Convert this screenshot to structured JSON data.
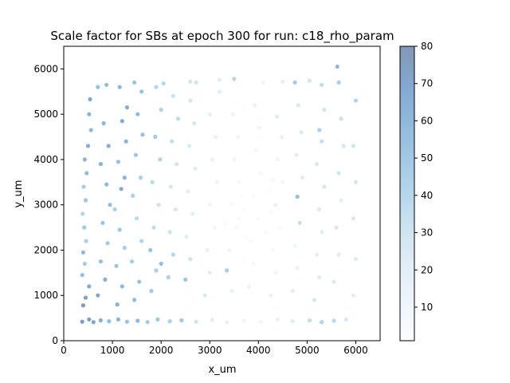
{
  "chart_data": {
    "type": "scatter",
    "title": "Scale factor for SBs at epoch 300 for run: c18_rho_param",
    "xlabel": "x_um",
    "ylabel": "y_um",
    "xlim": [
      0,
      6500
    ],
    "ylim": [
      0,
      6500
    ],
    "xticks": [
      "0",
      "1000",
      "2000",
      "3000",
      "4000",
      "5000",
      "6000"
    ],
    "yticks": [
      "0",
      "1000",
      "2000",
      "3000",
      "4000",
      "5000",
      "6000"
    ],
    "colorbar": {
      "colormap": "Blues",
      "range": [
        1,
        80
      ],
      "ticks": [
        "10",
        "20",
        "30",
        "40",
        "50",
        "60",
        "70",
        "80"
      ]
    },
    "colors": {
      "low": "#f7fbff",
      "mid": "#6baed6",
      "high": "#08306b"
    },
    "grid": false,
    "marker_alpha": 0.5,
    "points": [
      {
        "x": 380,
        "y": 420,
        "c": 78
      },
      {
        "x": 520,
        "y": 470,
        "c": 75
      },
      {
        "x": 610,
        "y": 410,
        "c": 72
      },
      {
        "x": 760,
        "y": 450,
        "c": 66
      },
      {
        "x": 930,
        "y": 430,
        "c": 58
      },
      {
        "x": 1120,
        "y": 470,
        "c": 62
      },
      {
        "x": 1300,
        "y": 420,
        "c": 55
      },
      {
        "x": 1520,
        "y": 440,
        "c": 60
      },
      {
        "x": 1720,
        "y": 410,
        "c": 48
      },
      {
        "x": 1930,
        "y": 470,
        "c": 52
      },
      {
        "x": 2180,
        "y": 430,
        "c": 44
      },
      {
        "x": 2420,
        "y": 450,
        "c": 50
      },
      {
        "x": 2720,
        "y": 420,
        "c": 30
      },
      {
        "x": 3050,
        "y": 460,
        "c": 20
      },
      {
        "x": 3350,
        "y": 410,
        "c": 14
      },
      {
        "x": 3700,
        "y": 440,
        "c": 12
      },
      {
        "x": 4050,
        "y": 420,
        "c": 10
      },
      {
        "x": 4400,
        "y": 470,
        "c": 15
      },
      {
        "x": 4700,
        "y": 430,
        "c": 22
      },
      {
        "x": 5050,
        "y": 450,
        "c": 34
      },
      {
        "x": 5300,
        "y": 410,
        "c": 42
      },
      {
        "x": 5550,
        "y": 440,
        "c": 38
      },
      {
        "x": 5800,
        "y": 470,
        "c": 28
      },
      {
        "x": 400,
        "y": 780,
        "c": 80
      },
      {
        "x": 450,
        "y": 950,
        "c": 74
      },
      {
        "x": 520,
        "y": 1200,
        "c": 68
      },
      {
        "x": 380,
        "y": 1450,
        "c": 56
      },
      {
        "x": 430,
        "y": 1700,
        "c": 48
      },
      {
        "x": 400,
        "y": 1950,
        "c": 60
      },
      {
        "x": 460,
        "y": 2200,
        "c": 44
      },
      {
        "x": 420,
        "y": 2500,
        "c": 50
      },
      {
        "x": 390,
        "y": 2800,
        "c": 40
      },
      {
        "x": 450,
        "y": 3100,
        "c": 52
      },
      {
        "x": 410,
        "y": 3400,
        "c": 46
      },
      {
        "x": 470,
        "y": 3700,
        "c": 58
      },
      {
        "x": 430,
        "y": 4000,
        "c": 62
      },
      {
        "x": 500,
        "y": 4300,
        "c": 66
      },
      {
        "x": 560,
        "y": 4650,
        "c": 60
      },
      {
        "x": 520,
        "y": 5000,
        "c": 64
      },
      {
        "x": 540,
        "y": 5330,
        "c": 70
      },
      {
        "x": 700,
        "y": 1000,
        "c": 72
      },
      {
        "x": 850,
        "y": 1350,
        "c": 65
      },
      {
        "x": 760,
        "y": 1750,
        "c": 55
      },
      {
        "x": 900,
        "y": 2150,
        "c": 48
      },
      {
        "x": 800,
        "y": 2600,
        "c": 52
      },
      {
        "x": 950,
        "y": 3000,
        "c": 57
      },
      {
        "x": 880,
        "y": 3450,
        "c": 60
      },
      {
        "x": 760,
        "y": 3900,
        "c": 63
      },
      {
        "x": 920,
        "y": 4300,
        "c": 66
      },
      {
        "x": 820,
        "y": 4800,
        "c": 62
      },
      {
        "x": 880,
        "y": 5650,
        "c": 58
      },
      {
        "x": 1100,
        "y": 800,
        "c": 64
      },
      {
        "x": 1200,
        "y": 1200,
        "c": 60
      },
      {
        "x": 1080,
        "y": 1650,
        "c": 52
      },
      {
        "x": 1250,
        "y": 2050,
        "c": 46
      },
      {
        "x": 1150,
        "y": 2450,
        "c": 50
      },
      {
        "x": 1050,
        "y": 2900,
        "c": 44
      },
      {
        "x": 1180,
        "y": 3350,
        "c": 68
      },
      {
        "x": 1250,
        "y": 3600,
        "c": 62
      },
      {
        "x": 1120,
        "y": 3950,
        "c": 56
      },
      {
        "x": 1280,
        "y": 4400,
        "c": 64
      },
      {
        "x": 1200,
        "y": 4850,
        "c": 70
      },
      {
        "x": 1300,
        "y": 5150,
        "c": 66
      },
      {
        "x": 1150,
        "y": 5600,
        "c": 60
      },
      {
        "x": 1450,
        "y": 900,
        "c": 58
      },
      {
        "x": 1550,
        "y": 1300,
        "c": 54
      },
      {
        "x": 1400,
        "y": 1750,
        "c": 48
      },
      {
        "x": 1600,
        "y": 2200,
        "c": 42
      },
      {
        "x": 1500,
        "y": 2700,
        "c": 38
      },
      {
        "x": 1420,
        "y": 3200,
        "c": 44
      },
      {
        "x": 1580,
        "y": 3600,
        "c": 46
      },
      {
        "x": 1480,
        "y": 4100,
        "c": 52
      },
      {
        "x": 1620,
        "y": 4550,
        "c": 56
      },
      {
        "x": 1520,
        "y": 5000,
        "c": 60
      },
      {
        "x": 1600,
        "y": 5500,
        "c": 54
      },
      {
        "x": 1800,
        "y": 1100,
        "c": 50
      },
      {
        "x": 1900,
        "y": 1550,
        "c": 46
      },
      {
        "x": 1780,
        "y": 2000,
        "c": 52
      },
      {
        "x": 2000,
        "y": 1700,
        "c": 58
      },
      {
        "x": 1850,
        "y": 2500,
        "c": 36
      },
      {
        "x": 1950,
        "y": 3000,
        "c": 32
      },
      {
        "x": 1820,
        "y": 3500,
        "c": 38
      },
      {
        "x": 1980,
        "y": 4000,
        "c": 42
      },
      {
        "x": 1880,
        "y": 4500,
        "c": 48
      },
      {
        "x": 2000,
        "y": 5100,
        "c": 44
      },
      {
        "x": 1900,
        "y": 5600,
        "c": 40
      },
      {
        "x": 2150,
        "y": 1400,
        "c": 44
      },
      {
        "x": 2250,
        "y": 1900,
        "c": 40
      },
      {
        "x": 2180,
        "y": 2400,
        "c": 32
      },
      {
        "x": 2300,
        "y": 2900,
        "c": 26
      },
      {
        "x": 2200,
        "y": 3400,
        "c": 28
      },
      {
        "x": 2320,
        "y": 3900,
        "c": 30
      },
      {
        "x": 2220,
        "y": 4400,
        "c": 34
      },
      {
        "x": 2350,
        "y": 4900,
        "c": 36
      },
      {
        "x": 2250,
        "y": 5400,
        "c": 32
      },
      {
        "x": 2500,
        "y": 1350,
        "c": 52
      },
      {
        "x": 2600,
        "y": 1800,
        "c": 30
      },
      {
        "x": 2520,
        "y": 2300,
        "c": 22
      },
      {
        "x": 2650,
        "y": 2800,
        "c": 18
      },
      {
        "x": 2550,
        "y": 3300,
        "c": 20
      },
      {
        "x": 2700,
        "y": 3800,
        "c": 22
      },
      {
        "x": 2580,
        "y": 4300,
        "c": 24
      },
      {
        "x": 2680,
        "y": 4800,
        "c": 26
      },
      {
        "x": 2600,
        "y": 5300,
        "c": 28
      },
      {
        "x": 2720,
        "y": 5700,
        "c": 30
      },
      {
        "x": 2900,
        "y": 1000,
        "c": 24
      },
      {
        "x": 3000,
        "y": 1500,
        "c": 18
      },
      {
        "x": 2950,
        "y": 2000,
        "c": 14
      },
      {
        "x": 3100,
        "y": 2500,
        "c": 10
      },
      {
        "x": 3000,
        "y": 3000,
        "c": 9
      },
      {
        "x": 3150,
        "y": 3500,
        "c": 12
      },
      {
        "x": 3050,
        "y": 4000,
        "c": 14
      },
      {
        "x": 3120,
        "y": 4500,
        "c": 16
      },
      {
        "x": 3000,
        "y": 5000,
        "c": 18
      },
      {
        "x": 3200,
        "y": 5500,
        "c": 20
      },
      {
        "x": 3350,
        "y": 1550,
        "c": 46
      },
      {
        "x": 3450,
        "y": 1100,
        "c": 16
      },
      {
        "x": 3400,
        "y": 2000,
        "c": 10
      },
      {
        "x": 3550,
        "y": 2500,
        "c": 6
      },
      {
        "x": 3450,
        "y": 3000,
        "c": 5
      },
      {
        "x": 3600,
        "y": 3500,
        "c": 7
      },
      {
        "x": 3500,
        "y": 4000,
        "c": 9
      },
      {
        "x": 3580,
        "y": 4500,
        "c": 11
      },
      {
        "x": 3480,
        "y": 5000,
        "c": 13
      },
      {
        "x": 3500,
        "y": 5780,
        "c": 40
      },
      {
        "x": 3800,
        "y": 1200,
        "c": 12
      },
      {
        "x": 3900,
        "y": 1700,
        "c": 8
      },
      {
        "x": 3850,
        "y": 2200,
        "c": 5
      },
      {
        "x": 4000,
        "y": 2700,
        "c": 3
      },
      {
        "x": 3900,
        "y": 3200,
        "c": 4
      },
      {
        "x": 4050,
        "y": 3700,
        "c": 6
      },
      {
        "x": 3950,
        "y": 4200,
        "c": 8
      },
      {
        "x": 4020,
        "y": 4700,
        "c": 12
      },
      {
        "x": 3920,
        "y": 5200,
        "c": 14
      },
      {
        "x": 4250,
        "y": 1000,
        "c": 14
      },
      {
        "x": 4350,
        "y": 1500,
        "c": 10
      },
      {
        "x": 4300,
        "y": 2000,
        "c": 6
      },
      {
        "x": 4450,
        "y": 2500,
        "c": 5
      },
      {
        "x": 4350,
        "y": 3000,
        "c": 14
      },
      {
        "x": 4500,
        "y": 3500,
        "c": 8
      },
      {
        "x": 4400,
        "y": 4000,
        "c": 10
      },
      {
        "x": 4480,
        "y": 4500,
        "c": 16
      },
      {
        "x": 4380,
        "y": 4950,
        "c": 20
      },
      {
        "x": 4700,
        "y": 1100,
        "c": 18
      },
      {
        "x": 4800,
        "y": 1600,
        "c": 14
      },
      {
        "x": 4750,
        "y": 2100,
        "c": 12
      },
      {
        "x": 4850,
        "y": 2600,
        "c": 34
      },
      {
        "x": 4800,
        "y": 3180,
        "c": 54
      },
      {
        "x": 4900,
        "y": 3600,
        "c": 22
      },
      {
        "x": 4780,
        "y": 4100,
        "c": 20
      },
      {
        "x": 4880,
        "y": 4600,
        "c": 24
      },
      {
        "x": 4820,
        "y": 5200,
        "c": 26
      },
      {
        "x": 4750,
        "y": 5700,
        "c": 48
      },
      {
        "x": 5150,
        "y": 900,
        "c": 26
      },
      {
        "x": 5250,
        "y": 1400,
        "c": 22
      },
      {
        "x": 5200,
        "y": 1900,
        "c": 18
      },
      {
        "x": 5300,
        "y": 2400,
        "c": 20
      },
      {
        "x": 5250,
        "y": 2900,
        "c": 24
      },
      {
        "x": 5350,
        "y": 3400,
        "c": 28
      },
      {
        "x": 5200,
        "y": 3900,
        "c": 26
      },
      {
        "x": 5300,
        "y": 4400,
        "c": 34
      },
      {
        "x": 5250,
        "y": 4650,
        "c": 44
      },
      {
        "x": 5350,
        "y": 5100,
        "c": 30
      },
      {
        "x": 5300,
        "y": 5650,
        "c": 36
      },
      {
        "x": 5550,
        "y": 1300,
        "c": 24
      },
      {
        "x": 5650,
        "y": 1900,
        "c": 20
      },
      {
        "x": 5600,
        "y": 2500,
        "c": 26
      },
      {
        "x": 5700,
        "y": 3100,
        "c": 22
      },
      {
        "x": 5650,
        "y": 3700,
        "c": 30
      },
      {
        "x": 5750,
        "y": 4300,
        "c": 28
      },
      {
        "x": 5700,
        "y": 4900,
        "c": 32
      },
      {
        "x": 5650,
        "y": 5700,
        "c": 46
      },
      {
        "x": 5620,
        "y": 6050,
        "c": 60
      },
      {
        "x": 5950,
        "y": 1000,
        "c": 22
      },
      {
        "x": 6000,
        "y": 1800,
        "c": 24
      },
      {
        "x": 5950,
        "y": 2700,
        "c": 26
      },
      {
        "x": 6000,
        "y": 3500,
        "c": 28
      },
      {
        "x": 5950,
        "y": 4300,
        "c": 30
      },
      {
        "x": 6000,
        "y": 5300,
        "c": 42
      },
      {
        "x": 700,
        "y": 5600,
        "c": 55
      },
      {
        "x": 1450,
        "y": 5700,
        "c": 52
      },
      {
        "x": 2050,
        "y": 5680,
        "c": 40
      },
      {
        "x": 2600,
        "y": 5720,
        "c": 30
      },
      {
        "x": 3200,
        "y": 5760,
        "c": 22
      },
      {
        "x": 4100,
        "y": 5700,
        "c": 12
      },
      {
        "x": 4500,
        "y": 5720,
        "c": 18
      },
      {
        "x": 5050,
        "y": 5740,
        "c": 30
      },
      {
        "x": 3700,
        "y": 2900,
        "c": 3
      },
      {
        "x": 3750,
        "y": 2300,
        "c": 2
      },
      {
        "x": 4150,
        "y": 2400,
        "c": 4
      },
      {
        "x": 4200,
        "y": 3300,
        "c": 2
      },
      {
        "x": 3600,
        "y": 2700,
        "c": 3
      },
      {
        "x": 4250,
        "y": 2850,
        "c": 6
      },
      {
        "x": 3300,
        "y": 2600,
        "c": 4
      },
      {
        "x": 3650,
        "y": 3200,
        "c": 2
      },
      {
        "x": 4300,
        "y": 3550,
        "c": 7
      }
    ]
  }
}
